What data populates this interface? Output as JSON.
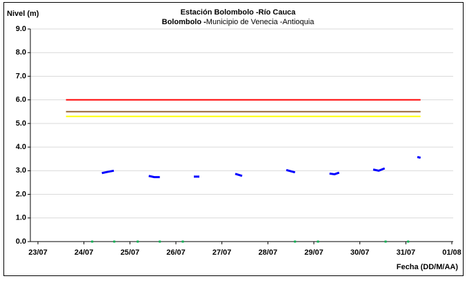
{
  "chart_data": {
    "type": "line",
    "title": "Estación Bolombolo -Río Cauca",
    "subtitle": [
      "Bolombolo -",
      "Municipio de Venecia -Antioquia"
    ],
    "ylabel": "Nivel (m)",
    "xlabel": "Fecha (DD/M/AA)",
    "xlim": [
      -0.165,
      9.03
    ],
    "ylim": [
      0,
      9
    ],
    "xticks": [
      {
        "value": 0,
        "label": "23/07"
      },
      {
        "value": 1,
        "label": "24/07"
      },
      {
        "value": 2,
        "label": "25/07"
      },
      {
        "value": 3,
        "label": "26/07"
      },
      {
        "value": 4,
        "label": "27/07"
      },
      {
        "value": 5,
        "label": "28/07"
      },
      {
        "value": 6,
        "label": "29/07"
      },
      {
        "value": 7,
        "label": "30/07"
      },
      {
        "value": 8,
        "label": "31/07"
      },
      {
        "value": 9,
        "label": "01/08"
      }
    ],
    "yticks": [
      {
        "value": 0,
        "label": "0.0"
      },
      {
        "value": 1,
        "label": "1.0"
      },
      {
        "value": 2,
        "label": "2.0"
      },
      {
        "value": 3,
        "label": "3.0"
      },
      {
        "value": 4,
        "label": "4.0"
      },
      {
        "value": 5,
        "label": "5.0"
      },
      {
        "value": 6,
        "label": "6.0"
      },
      {
        "value": 7,
        "label": "7.0"
      },
      {
        "value": 8,
        "label": "8.0"
      },
      {
        "value": 9,
        "label": "9.0"
      }
    ],
    "grid": true,
    "thresholds": [
      {
        "color": "#ff0000",
        "value": 6.0,
        "x": [
          0.61,
          8.32
        ]
      },
      {
        "color": "#996633",
        "value": 5.5,
        "x": [
          0.61,
          8.32
        ]
      },
      {
        "color": "#ffff00",
        "value": 5.3,
        "x": [
          0.61,
          8.32
        ]
      }
    ],
    "series": [
      {
        "color": "#0000ff",
        "x": [
          1.39,
          1.51,
          1.65,
          null,
          2.41,
          2.53,
          2.65,
          null,
          3.39,
          3.51,
          null,
          4.29,
          4.44,
          null,
          5.4,
          5.59,
          null,
          6.34,
          6.45,
          6.55,
          null,
          7.29,
          7.41,
          7.54,
          null,
          8.25,
          8.32
        ],
        "values": [
          2.9,
          2.95,
          3.0,
          null,
          2.78,
          2.73,
          2.73,
          null,
          2.75,
          2.75,
          null,
          2.87,
          2.78,
          null,
          3.03,
          2.93,
          null,
          2.88,
          2.85,
          2.92,
          null,
          3.05,
          3.0,
          3.1,
          null,
          3.58,
          3.55
        ]
      },
      {
        "color": "#00b050",
        "markers": true,
        "x": [
          1.18,
          1.66,
          2.17,
          2.65,
          3.15,
          5.59,
          6.09,
          7.56,
          8.05
        ],
        "values": [
          0,
          0,
          0,
          0,
          0,
          0,
          0,
          0,
          0
        ]
      }
    ]
  }
}
